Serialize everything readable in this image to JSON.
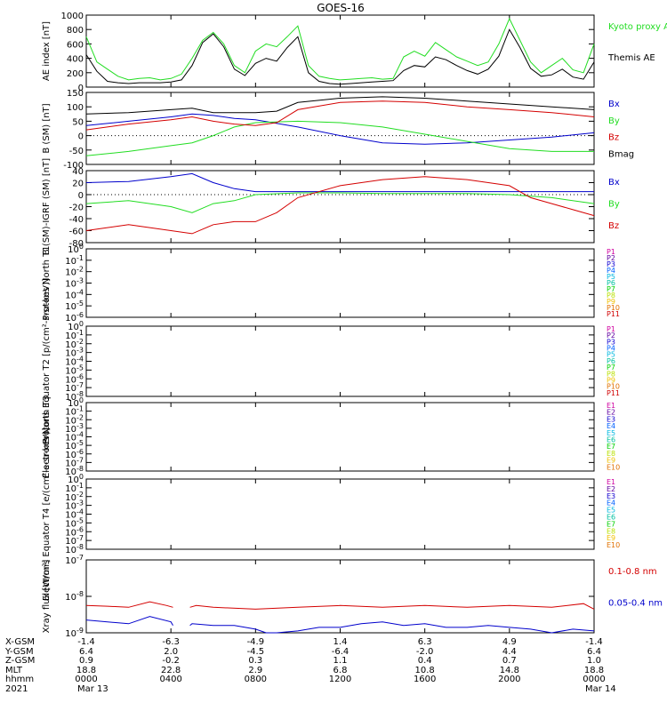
{
  "title": "GOES-16",
  "colors": {
    "black": "#000000",
    "red": "#d40000",
    "green": "#22dd22",
    "blue": "#0000cc",
    "P": [
      "#000000",
      "#d000a0",
      "#6000a0",
      "#1000d0",
      "#0060ff",
      "#00b8e0",
      "#00c0a0",
      "#00d000",
      "#b8e000",
      "#f0c000",
      "#e07000",
      "#d00000"
    ]
  },
  "chart_data": [
    {
      "type": "line",
      "ylabel": "AE index [nT]",
      "ylim": [
        0,
        1000
      ],
      "yticks": [
        "0",
        "200",
        "400",
        "600",
        "800",
        "1000"
      ],
      "legend": [
        {
          "name": "Kyoto proxy AE",
          "color": "green"
        },
        {
          "name": "Themis AE",
          "color": "black"
        }
      ],
      "series": [
        {
          "name": "Kyoto proxy AE",
          "color": "green",
          "x": [
            0,
            0.5,
            1,
            1.5,
            2,
            2.5,
            3,
            3.5,
            4,
            4.5,
            5,
            5.5,
            6,
            6.5,
            7,
            7.5,
            8,
            8.5,
            9,
            9.5,
            10,
            10.5,
            11,
            11.5,
            12,
            12.5,
            13,
            13.5,
            14,
            14.5,
            15,
            15.5,
            16,
            16.5,
            17,
            17.5,
            18,
            18.5,
            19,
            19.5,
            20,
            20.5,
            21,
            21.5,
            22,
            22.5,
            23,
            23.5,
            24
          ],
          "y": [
            700,
            350,
            250,
            150,
            100,
            120,
            130,
            100,
            120,
            180,
            400,
            650,
            760,
            600,
            300,
            200,
            500,
            600,
            560,
            700,
            850,
            300,
            150,
            120,
            100,
            110,
            120,
            130,
            110,
            120,
            420,
            500,
            430,
            620,
            520,
            420,
            360,
            300,
            350,
            600,
            950,
            650,
            350,
            200,
            300,
            400,
            240,
            200,
            600
          ]
        },
        {
          "name": "Themis AE",
          "color": "black",
          "x": [
            0,
            0.5,
            1,
            1.5,
            2,
            2.5,
            3,
            3.5,
            4,
            4.5,
            5,
            5.5,
            6,
            6.5,
            7,
            7.5,
            8,
            8.5,
            9,
            9.5,
            10,
            10.5,
            11,
            11.5,
            12,
            12.5,
            13,
            13.5,
            14,
            14.5,
            15,
            15.5,
            16,
            16.5,
            17,
            17.5,
            18,
            18.5,
            19,
            19.5,
            20,
            20.5,
            21,
            21.5,
            22,
            22.5,
            23,
            23.5,
            24
          ],
          "y": [
            450,
            220,
            80,
            60,
            50,
            60,
            60,
            60,
            70,
            100,
            300,
            620,
            740,
            560,
            250,
            160,
            330,
            400,
            360,
            550,
            700,
            200,
            80,
            50,
            40,
            50,
            60,
            70,
            80,
            90,
            230,
            300,
            280,
            420,
            380,
            300,
            230,
            180,
            250,
            430,
            800,
            550,
            260,
            150,
            170,
            250,
            140,
            110,
            350
          ]
        }
      ]
    },
    {
      "type": "line",
      "ylabel": "B (SM) [nT]",
      "ylim": [
        -100,
        150
      ],
      "yticks": [
        "-100",
        "-50",
        "0",
        "50",
        "100",
        "150"
      ],
      "legend": [
        {
          "name": "Bx",
          "color": "blue"
        },
        {
          "name": "By",
          "color": "green"
        },
        {
          "name": "Bz",
          "color": "red"
        },
        {
          "name": "Bmag",
          "color": "black"
        }
      ],
      "series": [
        {
          "name": "Bx",
          "color": "blue",
          "x": [
            0,
            2,
            4,
            5,
            6,
            7,
            8,
            10,
            12,
            14,
            16,
            18,
            20,
            22,
            24
          ],
          "y": [
            35,
            50,
            65,
            75,
            70,
            60,
            55,
            30,
            0,
            -25,
            -30,
            -25,
            -15,
            -5,
            10
          ]
        },
        {
          "name": "By",
          "color": "green",
          "x": [
            0,
            2,
            4,
            5,
            6,
            7,
            8,
            10,
            12,
            14,
            16,
            18,
            20,
            22,
            24
          ],
          "y": [
            -70,
            -55,
            -35,
            -25,
            0,
            30,
            45,
            50,
            45,
            30,
            5,
            -20,
            -45,
            -55,
            -55
          ]
        },
        {
          "name": "Bz",
          "color": "red",
          "x": [
            0,
            2,
            4,
            5,
            6,
            7,
            8,
            9,
            10,
            12,
            14,
            16,
            18,
            20,
            22,
            24
          ],
          "y": [
            20,
            40,
            55,
            65,
            50,
            40,
            35,
            45,
            90,
            115,
            120,
            115,
            100,
            90,
            80,
            65
          ]
        },
        {
          "name": "Bmag",
          "color": "black",
          "x": [
            0,
            2,
            4,
            5,
            6,
            7,
            8,
            9,
            10,
            12,
            14,
            16,
            18,
            20,
            22,
            24
          ],
          "y": [
            75,
            80,
            90,
            95,
            80,
            80,
            80,
            85,
            115,
            130,
            135,
            130,
            120,
            110,
            100,
            90
          ]
        }
      ]
    },
    {
      "type": "line",
      "ylabel": "B (SM)-IGRF (SM) [nT]",
      "ylim": [
        -80,
        40
      ],
      "yticks": [
        "-80",
        "-60",
        "-40",
        "-20",
        "0",
        "20",
        "40"
      ],
      "legend": [
        {
          "name": "Bx",
          "color": "blue"
        },
        {
          "name": "By",
          "color": "green"
        },
        {
          "name": "Bz",
          "color": "red"
        }
      ],
      "series": [
        {
          "name": "Bx",
          "color": "blue",
          "x": [
            0,
            2,
            4,
            5,
            6,
            7,
            8,
            10,
            12,
            14,
            16,
            18,
            20,
            22,
            24
          ],
          "y": [
            20,
            22,
            30,
            35,
            20,
            10,
            5,
            5,
            5,
            5,
            5,
            5,
            5,
            5,
            5
          ]
        },
        {
          "name": "By",
          "color": "green",
          "x": [
            0,
            2,
            4,
            5,
            6,
            7,
            8,
            10,
            12,
            14,
            16,
            18,
            20,
            22,
            24
          ],
          "y": [
            -15,
            -10,
            -20,
            -30,
            -15,
            -10,
            0,
            3,
            3,
            2,
            2,
            2,
            0,
            -5,
            -15
          ]
        },
        {
          "name": "Bz",
          "color": "red",
          "x": [
            0,
            1,
            2,
            3,
            4,
            5,
            6,
            7,
            8,
            9,
            10,
            12,
            14,
            16,
            18,
            20,
            21,
            22,
            23,
            24
          ],
          "y": [
            -60,
            -55,
            -50,
            -55,
            -60,
            -65,
            -50,
            -45,
            -45,
            -30,
            -5,
            15,
            25,
            30,
            25,
            15,
            -5,
            -15,
            -25,
            -35
          ]
        }
      ]
    },
    {
      "type": "line",
      "ylabel": "Protons North T1",
      "ylim_exp": [
        -6,
        0
      ],
      "yticks": [
        "10^0",
        "10^-1",
        "10^-2",
        "10^-3",
        "10^-4",
        "10^-5",
        "10^-6"
      ],
      "legend": [
        "P1",
        "P2",
        "P3",
        "P4",
        "P5",
        "P6",
        "P7",
        "P8",
        "P9",
        "P10",
        "P11"
      ],
      "series": []
    },
    {
      "type": "line",
      "ylabel": "Protons Equator T2 [p/(cm²-s-sr-keV)]",
      "ylim_exp": [
        -8,
        0
      ],
      "yticks": [
        "10^0",
        "10^-1",
        "10^-2",
        "10^-3",
        "10^-4",
        "10^-5",
        "10^-6",
        "10^-7",
        "10^-8"
      ],
      "legend": [
        "P1",
        "P2",
        "P3",
        "P4",
        "P5",
        "P6",
        "P7",
        "P8",
        "P9",
        "P10",
        "P11"
      ],
      "series": []
    },
    {
      "type": "line",
      "ylabel": "Electrons North T3",
      "ylim_exp": [
        -8,
        0
      ],
      "yticks": [
        "10^0",
        "10^-1",
        "10^-2",
        "10^-3",
        "10^-4",
        "10^-5",
        "10^-6",
        "10^-7",
        "10^-8"
      ],
      "legend": [
        "E1",
        "E2",
        "E3",
        "E4",
        "E5",
        "E6",
        "E7",
        "E8",
        "E9",
        "E10"
      ],
      "series": []
    },
    {
      "type": "line",
      "ylabel": "Electrons Equator T4 [e/(cm²-s-sr-keV)]",
      "ylim_exp": [
        -8,
        0
      ],
      "yticks": [
        "10^0",
        "10^-1",
        "10^-2",
        "10^-3",
        "10^-4",
        "10^-5",
        "10^-6",
        "10^-7",
        "10^-8"
      ],
      "legend": [
        "E1",
        "E2",
        "E3",
        "E4",
        "E5",
        "E6",
        "E7",
        "E8",
        "E9",
        "E10"
      ],
      "series": []
    },
    {
      "type": "line",
      "ylabel": "Xray flux [W/m²]",
      "ylim_exp": [
        -9,
        -7
      ],
      "yticks": [
        "10^-7",
        "10^-8",
        "10^-9"
      ],
      "legend": [
        {
          "name": "0.1-0.8 nm",
          "color": "red"
        },
        {
          "name": "0.05-0.4 nm",
          "color": "blue"
        }
      ],
      "series": [
        {
          "name": "0.1-0.8 nm",
          "color": "red",
          "x": [
            0,
            1,
            2,
            3,
            3.8,
            4.1,
            4.1,
            4.9,
            5.2,
            6,
            8,
            10,
            12,
            14,
            16,
            18,
            20,
            22,
            23.5,
            24
          ],
          "y": [
            -8.25,
            -8.27,
            -8.3,
            -8.15,
            -8.25,
            -8.3,
            null,
            -8.3,
            -8.25,
            -8.3,
            -8.35,
            -8.3,
            -8.25,
            -8.3,
            -8.25,
            -8.3,
            -8.25,
            -8.3,
            -8.2,
            -8.35
          ]
        },
        {
          "name": "0.05-0.4 nm",
          "color": "blue",
          "x": [
            0,
            1,
            2,
            3,
            4,
            4.1,
            4.1,
            4.9,
            5,
            6,
            7,
            8,
            8.5,
            9,
            10,
            11,
            12,
            13,
            14,
            15,
            16,
            17,
            18,
            19,
            20,
            21,
            22,
            23,
            24
          ],
          "y": [
            -8.65,
            -8.7,
            -8.75,
            -8.55,
            -8.7,
            -8.8,
            null,
            -8.8,
            -8.75,
            -8.8,
            -8.8,
            -8.9,
            -9,
            -9,
            -8.95,
            -8.85,
            -8.85,
            -8.75,
            -8.7,
            -8.8,
            -8.75,
            -8.85,
            -8.85,
            -8.8,
            -8.85,
            -8.9,
            -9,
            -8.9,
            -8.95
          ]
        }
      ]
    }
  ],
  "orbit": {
    "labels": [
      "X-GSM",
      "Y-GSM",
      "Z-GSM",
      "MLT",
      "hhmm",
      "2021"
    ],
    "columns": [
      {
        "rows": [
          "-1.4",
          "6.4",
          "0.9",
          "18.8",
          "0000",
          "Mar 13"
        ]
      },
      {
        "rows": [
          "-6.3",
          "2.0",
          "-0.2",
          "22.8",
          "0400",
          ""
        ]
      },
      {
        "rows": [
          "-4.9",
          "-4.5",
          "0.3",
          "2.9",
          "0800",
          ""
        ]
      },
      {
        "rows": [
          "1.4",
          "-6.4",
          "1.1",
          "6.8",
          "1200",
          ""
        ]
      },
      {
        "rows": [
          "6.3",
          "-2.0",
          "0.4",
          "10.8",
          "1600",
          ""
        ]
      },
      {
        "rows": [
          "4.9",
          "4.4",
          "0.7",
          "14.8",
          "2000",
          ""
        ]
      },
      {
        "rows": [
          "-1.4",
          "6.4",
          "1.0",
          "18.8",
          "0000",
          "Mar 14"
        ]
      }
    ]
  }
}
